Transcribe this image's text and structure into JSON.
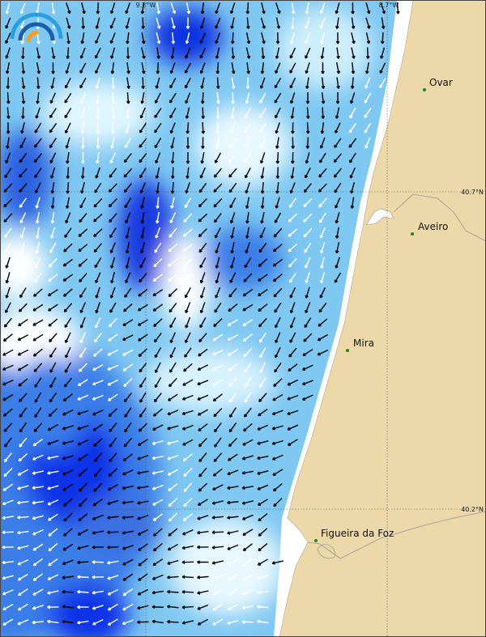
{
  "map": {
    "places": [
      {
        "label": "Ovar"
      },
      {
        "label": "Aveiro"
      },
      {
        "label": "Mira"
      },
      {
        "label": "Figueira da Foz"
      }
    ],
    "graticule": {
      "longitudes": [
        "9.2°W",
        "8.7°W"
      ],
      "latitudes": [
        "40.7°N",
        "40.2°N"
      ]
    }
  }
}
